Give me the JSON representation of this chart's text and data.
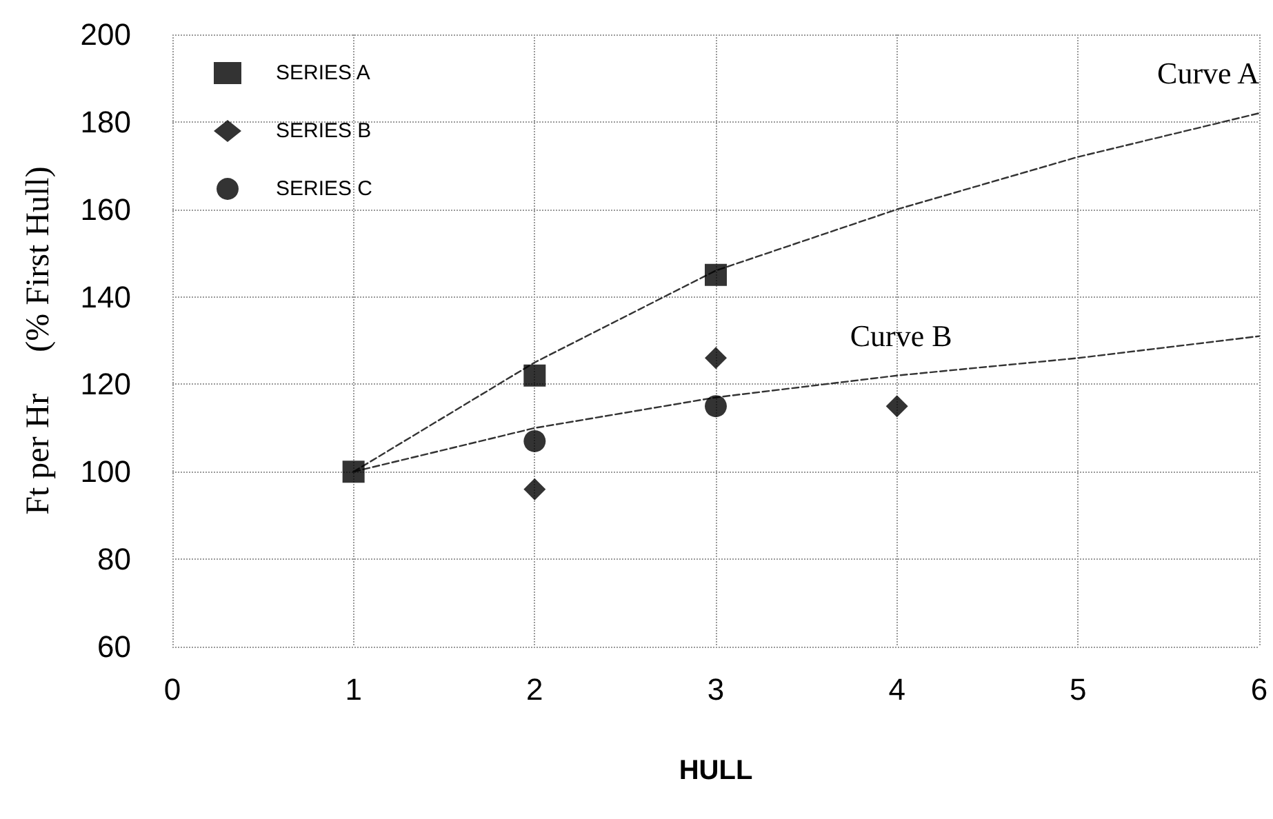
{
  "chart_data": {
    "type": "scatter",
    "xlabel": "HULL",
    "ylabel": "Ft per Hr     (% First Hull)",
    "xlim": [
      0,
      6
    ],
    "xticks": [
      0,
      1,
      2,
      3,
      4,
      5,
      6
    ],
    "ylim": [
      60,
      200
    ],
    "yticks": [
      60,
      80,
      100,
      120,
      140,
      160,
      180,
      200
    ],
    "grid": true,
    "legend": "top left",
    "series": [
      {
        "name": "SERIES A",
        "color": "#000000",
        "marker": "square",
        "x": [
          1,
          2,
          3
        ],
        "values": [
          100,
          122,
          145
        ]
      },
      {
        "name": "SERIES B",
        "color": "#000000",
        "marker": "diamond",
        "x": [
          2,
          3,
          4
        ],
        "values": [
          96,
          126,
          115
        ]
      },
      {
        "name": "SERIES C",
        "color": "#000000",
        "marker": "circle",
        "x": [
          2,
          3
        ],
        "values": [
          107,
          115
        ]
      },
      {
        "type": "line",
        "color": "#333333",
        "marker": "none",
        "line_style": "dashed",
        "x": [
          1,
          2,
          3,
          4,
          5,
          6
        ],
        "values": [
          100,
          125,
          146,
          160,
          172,
          182
        ]
      },
      {
        "type": "line",
        "color": "#333333",
        "marker": "none",
        "line_style": "dashed",
        "x": [
          1,
          2,
          3,
          4,
          5,
          6
        ],
        "values": [
          100,
          110,
          117,
          122,
          126,
          131
        ]
      }
    ],
    "annotations": [
      {
        "text": "Curve A",
        "x": 6,
        "y": 182
      },
      {
        "text": "Curve B",
        "x": 4,
        "y": 122
      }
    ]
  }
}
